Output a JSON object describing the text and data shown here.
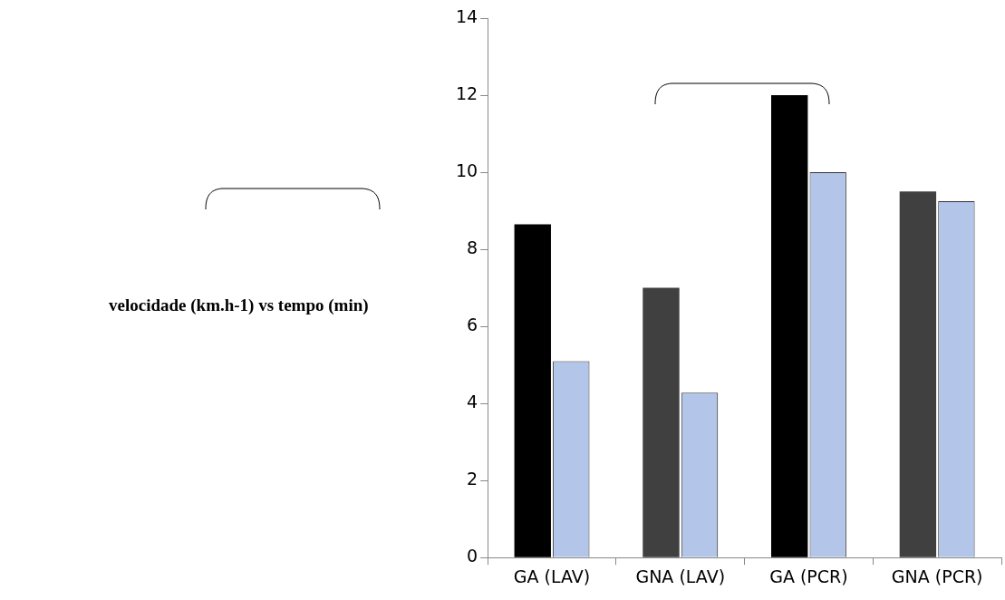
{
  "chart_data": {
    "type": "bar",
    "title": "velocidade (km.h-1) vs tempo (min)",
    "categories": [
      "GA (LAV)",
      "GNA (LAV)",
      "GA (PCR)",
      "GNA (PCR)"
    ],
    "series": [
      {
        "colors": [
          "#000000",
          "#404040",
          "#000000",
          "#404040"
        ],
        "values": [
          8.65,
          7.0,
          12.0,
          9.5
        ]
      },
      {
        "color": "#b3c6ea",
        "values": [
          5.1,
          4.28,
          10.0,
          9.25
        ]
      }
    ],
    "ylim": [
      0,
      14
    ],
    "yticks": [
      0,
      2,
      4,
      6,
      8,
      10,
      12,
      14
    ]
  }
}
